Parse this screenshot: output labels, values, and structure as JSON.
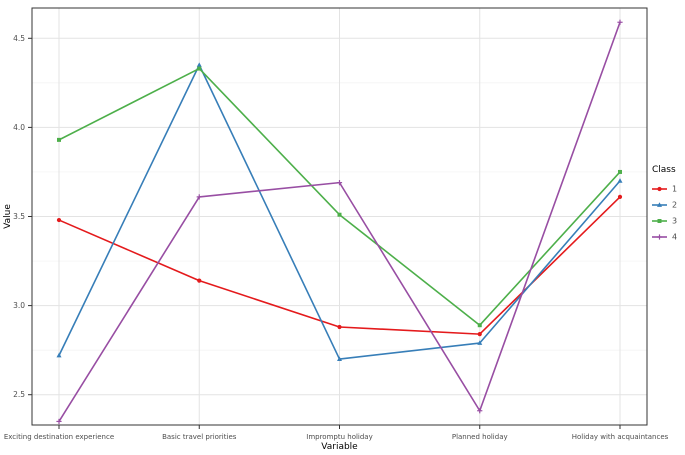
{
  "chart_data": {
    "type": "line",
    "title": "",
    "xlabel": "Variable",
    "ylabel": "Value",
    "legend_title": "Class",
    "legend_position": "right",
    "grid": true,
    "categories": [
      "Exciting destination experience",
      "Basic travel priorities",
      "Impromptu holiday",
      "Planned holiday",
      "Holiday with acquaintances"
    ],
    "y_ticks": [
      2.5,
      3.0,
      3.5,
      4.0,
      4.5
    ],
    "y_minor": [
      2.75,
      3.25,
      3.75,
      4.25
    ],
    "ylim": [
      2.33,
      4.67
    ],
    "series": [
      {
        "name": "1",
        "color": "#e41a1c",
        "marker": "circle",
        "values": [
          3.48,
          3.14,
          2.88,
          2.84,
          3.61
        ]
      },
      {
        "name": "2",
        "color": "#377eb8",
        "marker": "triangle",
        "values": [
          2.72,
          4.35,
          2.7,
          2.79,
          3.7
        ]
      },
      {
        "name": "3",
        "color": "#4daf4a",
        "marker": "square",
        "values": [
          3.93,
          4.33,
          3.51,
          2.89,
          3.75
        ]
      },
      {
        "name": "4",
        "color": "#984ea3",
        "marker": "plus",
        "values": [
          2.35,
          3.61,
          3.69,
          2.41,
          4.59
        ]
      }
    ],
    "colors": {
      "panel_bg": "#ffffff",
      "panel_border": "#333333",
      "grid_major": "#e3e3e3",
      "grid_minor": "#f1f1f1",
      "tick": "#333333",
      "tick_label": "#4d4d4d",
      "axis_title": "#000000"
    }
  }
}
